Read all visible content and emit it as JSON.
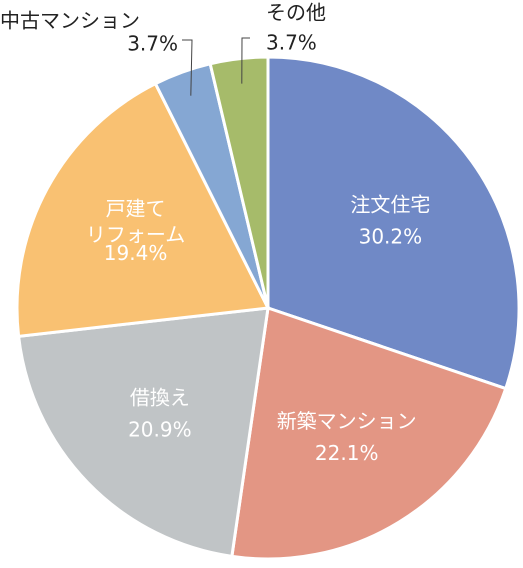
{
  "chart_data": {
    "type": "pie",
    "categories": [
      "注文住宅",
      "新築マンション",
      "借換え",
      "戸建て\nリフォーム",
      "中古マンション",
      "その他"
    ],
    "values": [
      30.2,
      22.1,
      20.9,
      19.4,
      3.7,
      3.7
    ],
    "value_labels": [
      "30.2%",
      "22.1%",
      "20.9%",
      "19.4%",
      "3.7%",
      "3.7%"
    ],
    "colors": [
      "#7089c6",
      "#e39684",
      "#c0c4c6",
      "#f9c172",
      "#85a7d3",
      "#a6bb6a"
    ]
  }
}
